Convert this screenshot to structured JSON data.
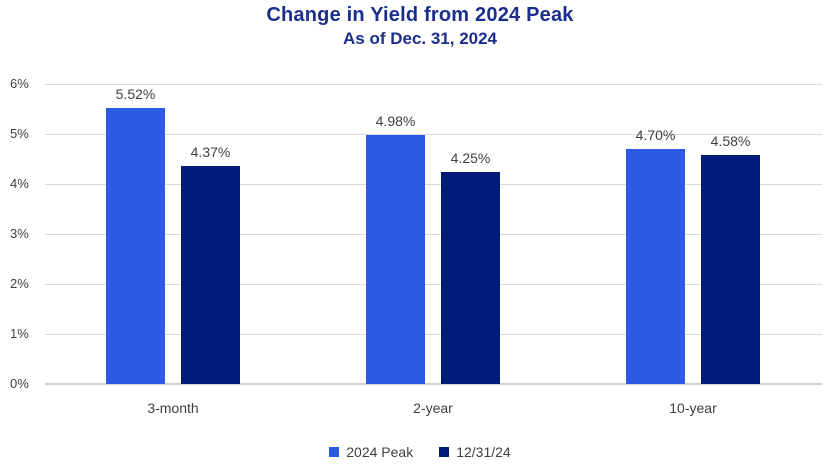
{
  "chart_data": {
    "type": "bar",
    "title": "Change in Yield from 2024 Peak",
    "subtitle": "As of Dec. 31, 2024",
    "categories": [
      "3-month",
      "2-year",
      "10-year"
    ],
    "series": [
      {
        "name": "2024 Peak",
        "color": "#2A5BE2",
        "values": [
          5.52,
          4.98,
          4.7
        ],
        "value_labels": [
          "5.52%",
          "4.98%",
          "4.70%"
        ]
      },
      {
        "name": "12/31/24",
        "color": "#021B7A",
        "values": [
          4.37,
          4.25,
          4.58
        ],
        "value_labels": [
          "4.37%",
          "4.25%",
          "4.58%"
        ]
      }
    ],
    "xlabel": "",
    "ylabel": "",
    "ylim": [
      0,
      6
    ],
    "y_ticks": [
      "0%",
      "1%",
      "2%",
      "3%",
      "4%",
      "5%",
      "6%"
    ],
    "grid": true,
    "legend_position": "bottom",
    "colors": {
      "title_text": "#1B2E8C",
      "axis_text": "#3F3F3F",
      "value_label_text": "#3F3F3F",
      "gridline": "#D9D9D9",
      "baseline": "#CFCFCF",
      "background": "#FFFFFF"
    }
  }
}
